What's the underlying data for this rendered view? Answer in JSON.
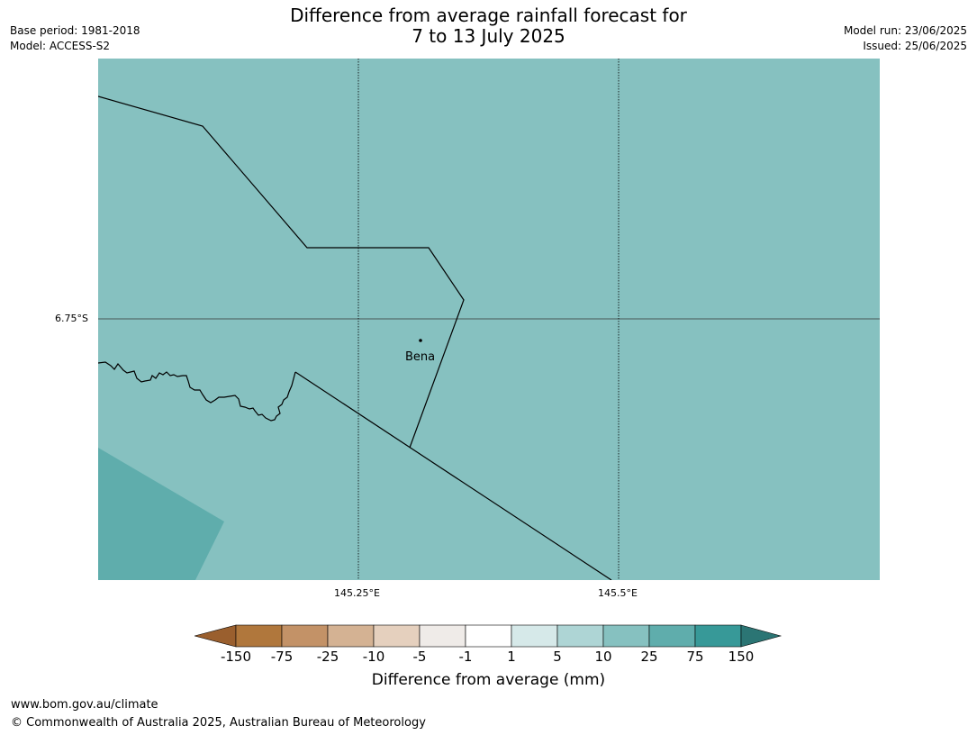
{
  "title_line1": "Difference from average rainfall forecast for",
  "title_line2": "7 to 13 July 2025",
  "meta_left": {
    "base_period": "Base period: 1981-2018",
    "model": "Model: ACCESS-S2"
  },
  "meta_right": {
    "model_run": "Model run: 23/06/2025",
    "issued": "Issued: 25/06/2025"
  },
  "map": {
    "lon_labels": [
      "145.25°E",
      "145.5°E"
    ],
    "lat_labels": [
      "6.75°S"
    ],
    "towns": [
      {
        "name": "Bena"
      }
    ],
    "background_color": "#86c1c0",
    "zone_color": "#5fadac",
    "line_color": "#000000"
  },
  "legend": {
    "title": "Difference from average (mm)",
    "ticks": [
      "-150",
      "-75",
      "-25",
      "-10",
      "-5",
      "-1",
      "1",
      "5",
      "10",
      "25",
      "75",
      "150"
    ],
    "colors": [
      "#9a5f2e",
      "#b0773c",
      "#c39267",
      "#d4b293",
      "#e5d0be",
      "#efebe8",
      "#ffffff",
      "#d6e9e9",
      "#aed5d5",
      "#86c1c0",
      "#5fadac",
      "#379998",
      "#2b7574"
    ]
  },
  "footer": {
    "url": "www.bom.gov.au/climate",
    "copyright": "© Commonwealth of Australia 2025, Australian Bureau of Meteorology"
  }
}
